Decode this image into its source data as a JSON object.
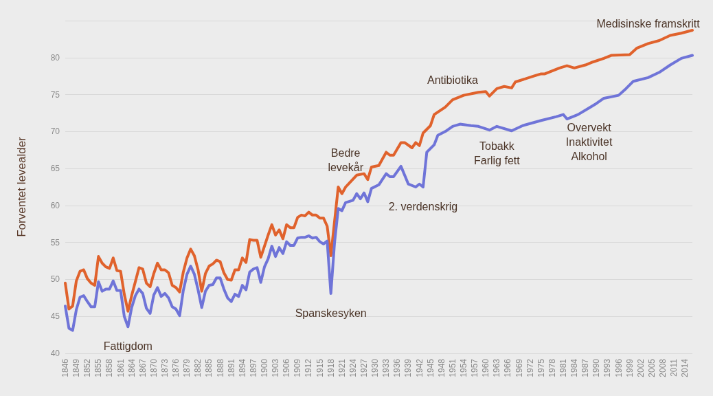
{
  "chart_data": {
    "type": "line",
    "ylabel": "Forventet levealder",
    "xlim": [
      1846,
      2016
    ],
    "xticks": [
      1846,
      1849,
      1852,
      1855,
      1858,
      1861,
      1864,
      1867,
      1870,
      1873,
      1876,
      1879,
      1882,
      1885,
      1888,
      1891,
      1894,
      1897,
      1900,
      1903,
      1906,
      1909,
      1912,
      1915,
      1918,
      1921,
      1924,
      1927,
      1930,
      1933,
      1936,
      1939,
      1942,
      1945,
      1948,
      1951,
      1954,
      1957,
      1960,
      1963,
      1966,
      1969,
      1972,
      1975,
      1978,
      1981,
      1984,
      1987,
      1990,
      1993,
      1996,
      1999,
      2002,
      2005,
      2008,
      2011,
      2014
    ],
    "ylim": [
      40,
      85
    ],
    "yticks": [
      40,
      45,
      50,
      55,
      60,
      65,
      70,
      75,
      80,
      {
        "value": 85,
        "label": null
      }
    ],
    "grid": "y",
    "marker": "none",
    "line_style": "solid",
    "series": [
      {
        "color": "#e0622c",
        "x": [
          1846,
          1847,
          1848,
          1849,
          1850,
          1851,
          1852,
          1853,
          1854,
          1855,
          1856,
          1857,
          1858,
          1859,
          1860,
          1861,
          1862,
          1863,
          1864,
          1865,
          1866,
          1867,
          1868,
          1869,
          1870,
          1871,
          1872,
          1873,
          1874,
          1875,
          1876,
          1877,
          1878,
          1879,
          1880,
          1881,
          1882,
          1883,
          1884,
          1885,
          1886,
          1887,
          1888,
          1889,
          1890,
          1891,
          1892,
          1893,
          1894,
          1895,
          1896,
          1897,
          1898,
          1899,
          1900,
          1901,
          1902,
          1903,
          1904,
          1905,
          1906,
          1907,
          1908,
          1909,
          1910,
          1911,
          1912,
          1913,
          1914,
          1915,
          1916,
          1917,
          1918,
          1920,
          1921,
          1922,
          1925,
          1927,
          1928,
          1929,
          1931,
          1933,
          1934,
          1935,
          1937,
          1938,
          1940,
          1941,
          1942,
          1943,
          1945,
          1946,
          1949,
          1951,
          1954,
          1958,
          1960,
          1961,
          1963,
          1965,
          1967,
          1968,
          1973,
          1975,
          1976,
          1980,
          1982,
          1984,
          1987,
          1989,
          1992,
          1994,
          1999,
          2001,
          2004,
          2007,
          2010,
          2013,
          2016
        ],
        "values": [
          49.5,
          46.0,
          46.4,
          49.8,
          51.1,
          51.3,
          50.1,
          49.5,
          49.2,
          53.1,
          52.2,
          51.7,
          51.5,
          52.9,
          51.2,
          51.1,
          48.0,
          45.7,
          47.8,
          49.7,
          51.6,
          51.4,
          49.5,
          49.0,
          50.8,
          52.2,
          51.3,
          51.3,
          50.9,
          49.2,
          48.9,
          48.3,
          51.0,
          52.9,
          54.1,
          53.2,
          51.3,
          48.4,
          50.8,
          51.8,
          52.1,
          52.6,
          52.4,
          50.9,
          50.0,
          49.9,
          51.3,
          51.3,
          52.9,
          52.3,
          55.4,
          55.3,
          55.3,
          53.0,
          54.5,
          56.0,
          57.4,
          56.0,
          56.7,
          55.5,
          57.4,
          57.0,
          57.0,
          58.4,
          58.7,
          58.6,
          59.1,
          58.7,
          58.7,
          58.3,
          58.3,
          57.2,
          53.2,
          62.5,
          61.6,
          62.5,
          64.1,
          64.3,
          63.5,
          65.2,
          65.4,
          67.2,
          66.8,
          66.8,
          68.5,
          68.5,
          67.8,
          68.5,
          68.1,
          69.8,
          70.8,
          72.3,
          73.3,
          74.3,
          74.9,
          75.3,
          75.4,
          74.8,
          75.8,
          76.1,
          75.9,
          76.7,
          77.5,
          77.8,
          77.8,
          78.6,
          78.9,
          78.6,
          79.0,
          79.4,
          79.9,
          80.3,
          80.4,
          81.3,
          81.9,
          82.3,
          83.0,
          83.3,
          83.7
        ]
      },
      {
        "color": "#6f74d8",
        "x": [
          1846,
          1847,
          1848,
          1849,
          1850,
          1851,
          1852,
          1853,
          1854,
          1855,
          1856,
          1857,
          1858,
          1859,
          1860,
          1861,
          1862,
          1863,
          1864,
          1865,
          1866,
          1867,
          1868,
          1869,
          1870,
          1871,
          1872,
          1873,
          1874,
          1875,
          1876,
          1877,
          1878,
          1879,
          1880,
          1881,
          1882,
          1883,
          1884,
          1885,
          1886,
          1887,
          1888,
          1889,
          1890,
          1891,
          1892,
          1893,
          1894,
          1895,
          1896,
          1897,
          1898,
          1899,
          1900,
          1901,
          1902,
          1903,
          1904,
          1905,
          1906,
          1907,
          1908,
          1909,
          1910,
          1911,
          1912,
          1913,
          1914,
          1915,
          1916,
          1917,
          1918,
          1919,
          1920,
          1921,
          1922,
          1924,
          1925,
          1926,
          1927,
          1928,
          1929,
          1931,
          1933,
          1934,
          1935,
          1937,
          1939,
          1941,
          1942,
          1943,
          1944,
          1946,
          1947,
          1949,
          1951,
          1953,
          1956,
          1958,
          1961,
          1963,
          1967,
          1970,
          1975,
          1979,
          1981,
          1982,
          1985,
          1988,
          1990,
          1992,
          1996,
          1998,
          2000,
          2004,
          2007,
          2010,
          2013,
          2016
        ],
        "values": [
          46.4,
          43.4,
          43.1,
          45.9,
          47.6,
          47.8,
          47.0,
          46.3,
          46.3,
          49.7,
          48.4,
          48.7,
          48.7,
          49.8,
          48.5,
          48.5,
          45.0,
          43.6,
          46.2,
          47.8,
          48.7,
          48.1,
          46.1,
          45.4,
          47.9,
          48.9,
          47.7,
          48.1,
          47.5,
          46.3,
          46.0,
          45.1,
          48.5,
          50.7,
          51.8,
          50.7,
          48.6,
          46.2,
          48.4,
          49.2,
          49.3,
          50.2,
          50.2,
          48.7,
          47.5,
          47.0,
          48.0,
          47.7,
          49.2,
          48.6,
          51.0,
          51.4,
          51.6,
          49.6,
          51.7,
          52.8,
          54.5,
          53.1,
          54.3,
          53.5,
          55.1,
          54.6,
          54.6,
          55.6,
          55.7,
          55.7,
          55.9,
          55.6,
          55.7,
          55.1,
          54.8,
          55.2,
          48.1,
          55.0,
          59.6,
          59.3,
          60.4,
          60.7,
          61.6,
          60.9,
          61.7,
          60.5,
          62.3,
          62.8,
          64.3,
          63.9,
          63.9,
          65.3,
          62.9,
          62.5,
          62.9,
          62.5,
          67.2,
          68.2,
          69.5,
          70.0,
          70.7,
          71.0,
          70.8,
          70.7,
          70.2,
          70.7,
          70.1,
          70.8,
          71.5,
          72.0,
          72.3,
          71.7,
          72.3,
          73.2,
          73.8,
          74.5,
          74.9,
          75.8,
          76.8,
          77.3,
          78.0,
          79.0,
          79.9,
          80.3
        ]
      }
    ],
    "annotations": [
      {
        "text": "Fattigdom",
        "x": 1863,
        "y": 43.6
      },
      {
        "text": "Spanskesyken",
        "x": 1918,
        "y": 48.1
      },
      {
        "text": "Bedre\nlevekår",
        "x": 1922,
        "y": 62.5
      },
      {
        "text": "2. verdenskrig",
        "x": 1943,
        "y": 62.5
      },
      {
        "text": "Antibiotika",
        "x": 1951,
        "y": 74.3
      },
      {
        "text": "Tobakk\nFarlig fett",
        "x": 1963,
        "y": 70.7
      },
      {
        "text": "Overvekt\nInaktivitet\nAlkohol",
        "x": 1988,
        "y": 73.2
      },
      {
        "text": "Medisinske framskritt",
        "x": 2004,
        "y": 81.9
      }
    ]
  }
}
